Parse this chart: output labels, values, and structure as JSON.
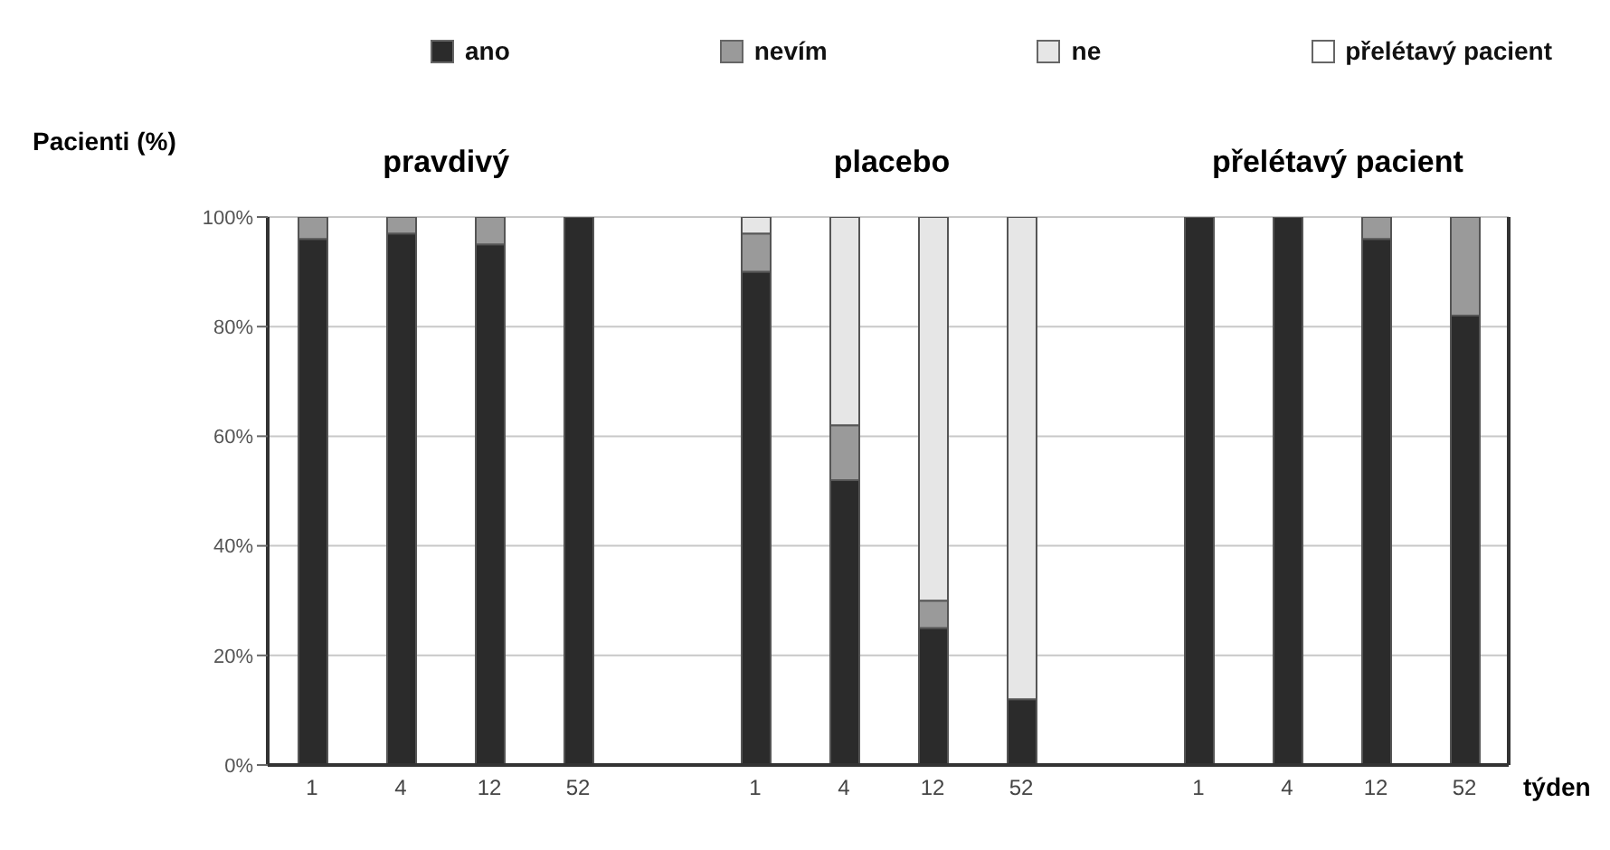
{
  "chart_data": {
    "type": "bar",
    "stacked": true,
    "ylabel": "Pacienti (%)",
    "xlabel": "týden",
    "annotations": [
      "pravdivý",
      "placebo",
      "přelétavý pacient"
    ],
    "categories": [
      "1",
      "4",
      "12",
      "52",
      null,
      "1",
      "4",
      "12",
      "52",
      null,
      "1",
      "4",
      "12",
      "52"
    ],
    "series": [
      {
        "name": "ano",
        "color": "#2b2b2b",
        "values": [
          96,
          97,
          95,
          100,
          null,
          90,
          52,
          25,
          12,
          null,
          100,
          100,
          96,
          82
        ]
      },
      {
        "name": "nevím",
        "color": "#9a9a9a",
        "values": [
          4,
          3,
          5,
          0,
          null,
          7,
          10,
          5,
          0,
          null,
          0,
          0,
          4,
          18
        ]
      },
      {
        "name": "ne",
        "color": "#e6e6e6",
        "values": [
          0,
          0,
          0,
          0,
          null,
          3,
          38,
          70,
          88,
          null,
          0,
          0,
          0,
          0
        ]
      },
      {
        "name": "přelétavý pacient",
        "color": "#ffffff",
        "values": [
          0,
          0,
          0,
          0,
          null,
          0,
          0,
          0,
          0,
          null,
          0,
          0,
          0,
          0
        ]
      }
    ],
    "ylim": [
      0,
      100
    ],
    "yticks": [
      {
        "value": 0,
        "label": "0%"
      },
      {
        "value": 20,
        "label": "20%"
      },
      {
        "value": 40,
        "label": "40%"
      },
      {
        "value": 60,
        "label": "60%"
      },
      {
        "value": 80,
        "label": "80%"
      },
      {
        "value": 100,
        "label": "100%"
      }
    ],
    "grid": "y",
    "legend": "top"
  }
}
